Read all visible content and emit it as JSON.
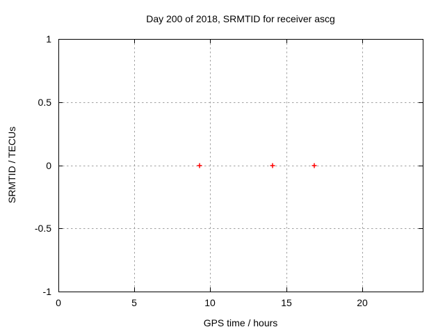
{
  "window": {
    "background": "#ffffff"
  },
  "chart_data": {
    "type": "scatter",
    "title": "Day 200 of 2018, SRMTID for receiver ascg",
    "xlabel": "GPS time / hours",
    "ylabel": "SRMTID / TECUs",
    "xlim": [
      0,
      24
    ],
    "ylim": [
      -1,
      1
    ],
    "xticks": [
      {
        "value": 0,
        "label": "0"
      },
      {
        "value": 5,
        "label": "5"
      },
      {
        "value": 10,
        "label": "10"
      },
      {
        "value": 15,
        "label": "15"
      },
      {
        "value": 20,
        "label": "20"
      }
    ],
    "yticks": [
      {
        "value": 1,
        "label": "1"
      },
      {
        "value": 0.5,
        "label": "0.5"
      },
      {
        "value": 0,
        "label": "0"
      },
      {
        "value": -0.5,
        "label": "-0.5"
      },
      {
        "value": -1,
        "label": "-1"
      }
    ],
    "grid": true,
    "legend": "none",
    "series": [
      {
        "name": "SRMTID",
        "marker": "plus",
        "color": "#ff0000",
        "points": [
          {
            "x": 9.3,
            "y": 0.0
          },
          {
            "x": 14.1,
            "y": 0.0
          },
          {
            "x": 16.85,
            "y": 0.0
          }
        ]
      }
    ],
    "style": {
      "grid_color": "#a0a0a0",
      "axis_color": "#000000",
      "text_color": "#000000",
      "plot_background": "#ffffff"
    }
  }
}
